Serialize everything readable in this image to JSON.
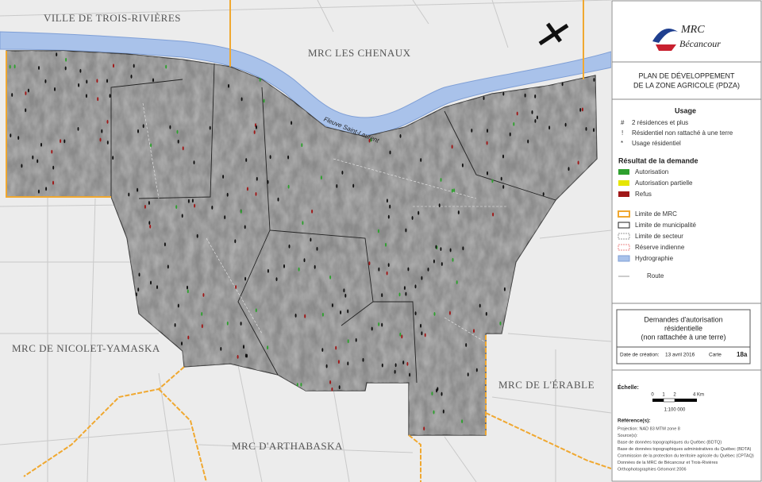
{
  "map_labels": [
    "VILLE DE TROIS-RIVIÈRES",
    "MRC LES CHENAUX",
    "Fleuve Saint-Laurent",
    "MRC DE NICOLET-YAMASKA",
    "MRC DE L'ÉRABLE",
    "MRC D'ARTHABASKA"
  ],
  "logo": {
    "acronym": "MRC",
    "name": "Bécancour"
  },
  "title": [
    "PLAN DE DÉVELOPPEMENT",
    "DE LA ZONE AGRICOLE (PDZA)"
  ],
  "legend": {
    "usage_title": "Usage",
    "usage": [
      {
        "symbol": "#",
        "label": "2 résidences et plus"
      },
      {
        "symbol": "!",
        "label": "Résidentiel non rattaché à une terre"
      },
      {
        "symbol": "*",
        "label": "Usage résidentiel"
      }
    ],
    "result_title": "Résultat de la demande",
    "results": [
      "Autorisation",
      "Autorisation partielle",
      "Refus"
    ],
    "limits": [
      "Limite de MRC",
      "Limite de municipalité",
      "Limite de secteur",
      "Réserve indienne",
      "Hydrographie",
      "Route"
    ]
  },
  "map_box": {
    "title": [
      "Demandes d'autorisation",
      "résidentielle",
      "(non rattachée à une terre)"
    ],
    "created_label": "Date de création:",
    "created": "13 avril 2016",
    "map_label": "Carte",
    "map_number": "18a"
  },
  "scale": {
    "title": "Échelle:",
    "ticks": [
      "0",
      "1",
      "2",
      "4 Km"
    ],
    "ratio": "1:100 000"
  },
  "references": {
    "title": "Référence(s):",
    "lines": [
      "Projection: NAD 83 MTM zone 8",
      "Source(s):",
      "Base de données topographiques du Québec (BDTQ)",
      "Base de données topographiques administratives du Québec (BDTA)",
      "Commission de la protection du territoire agricole du Québec (CPTAQ)",
      "Données de la MRC de Bécancour et Trois-Rivières",
      "Orthophotographies Géomont 2006"
    ]
  }
}
